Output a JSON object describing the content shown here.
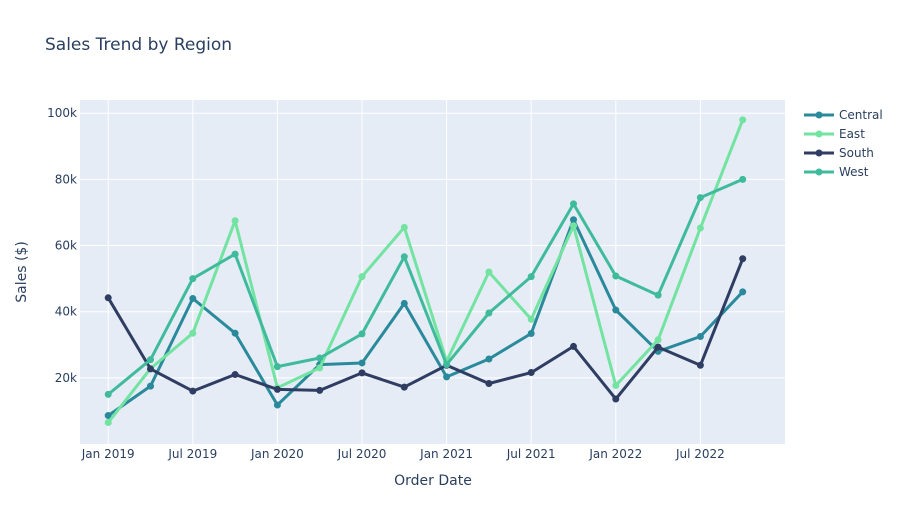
{
  "chart_data": {
    "type": "line",
    "title": "Sales Trend by Region",
    "xlabel": "Order Date",
    "ylabel": "Sales ($)",
    "x": [
      "2019-01",
      "2019-04",
      "2019-07",
      "2019-10",
      "2020-01",
      "2020-04",
      "2020-07",
      "2020-10",
      "2021-01",
      "2021-04",
      "2021-07",
      "2021-10",
      "2022-01",
      "2022-04",
      "2022-07",
      "2022-10"
    ],
    "x_ticks": [
      {
        "date": "2019-01",
        "label": "Jan 2019"
      },
      {
        "date": "2019-07",
        "label": "Jul 2019"
      },
      {
        "date": "2020-01",
        "label": "Jan 2020"
      },
      {
        "date": "2020-07",
        "label": "Jul 2020"
      },
      {
        "date": "2021-01",
        "label": "Jan 2021"
      },
      {
        "date": "2021-07",
        "label": "Jul 2021"
      },
      {
        "date": "2022-01",
        "label": "Jan 2022"
      },
      {
        "date": "2022-07",
        "label": "Jul 2022"
      }
    ],
    "xlim": [
      "2018-11",
      "2023-01"
    ],
    "y_ticks": [
      {
        "value": 20000,
        "label": "20k"
      },
      {
        "value": 40000,
        "label": "40k"
      },
      {
        "value": 60000,
        "label": "60k"
      },
      {
        "value": 80000,
        "label": "80k"
      },
      {
        "value": 100000,
        "label": "100k"
      }
    ],
    "ylim": [
      0,
      104000
    ],
    "grid": true,
    "legend_position": "top-right",
    "series": [
      {
        "name": "Central",
        "color": "#2a8a9b",
        "values": [
          8600,
          17500,
          44000,
          33500,
          11800,
          24000,
          24500,
          42500,
          20300,
          25700,
          33400,
          67800,
          40500,
          28000,
          32500,
          46000
        ]
      },
      {
        "name": "East",
        "color": "#72e3a0",
        "values": [
          6500,
          22800,
          33500,
          67500,
          17000,
          23000,
          50600,
          65500,
          25000,
          52000,
          37700,
          66000,
          17700,
          31500,
          65300,
          98000
        ]
      },
      {
        "name": "South",
        "color": "#2f3d63",
        "values": [
          44200,
          22700,
          16000,
          21000,
          16500,
          16200,
          21500,
          17200,
          23800,
          18300,
          21600,
          29500,
          13600,
          29300,
          23800,
          56000
        ]
      },
      {
        "name": "West",
        "color": "#3fbb9c",
        "values": [
          15000,
          25500,
          50000,
          57400,
          23400,
          26000,
          33300,
          56600,
          24000,
          39600,
          50600,
          72600,
          50800,
          45000,
          74500,
          80000
        ]
      }
    ]
  }
}
